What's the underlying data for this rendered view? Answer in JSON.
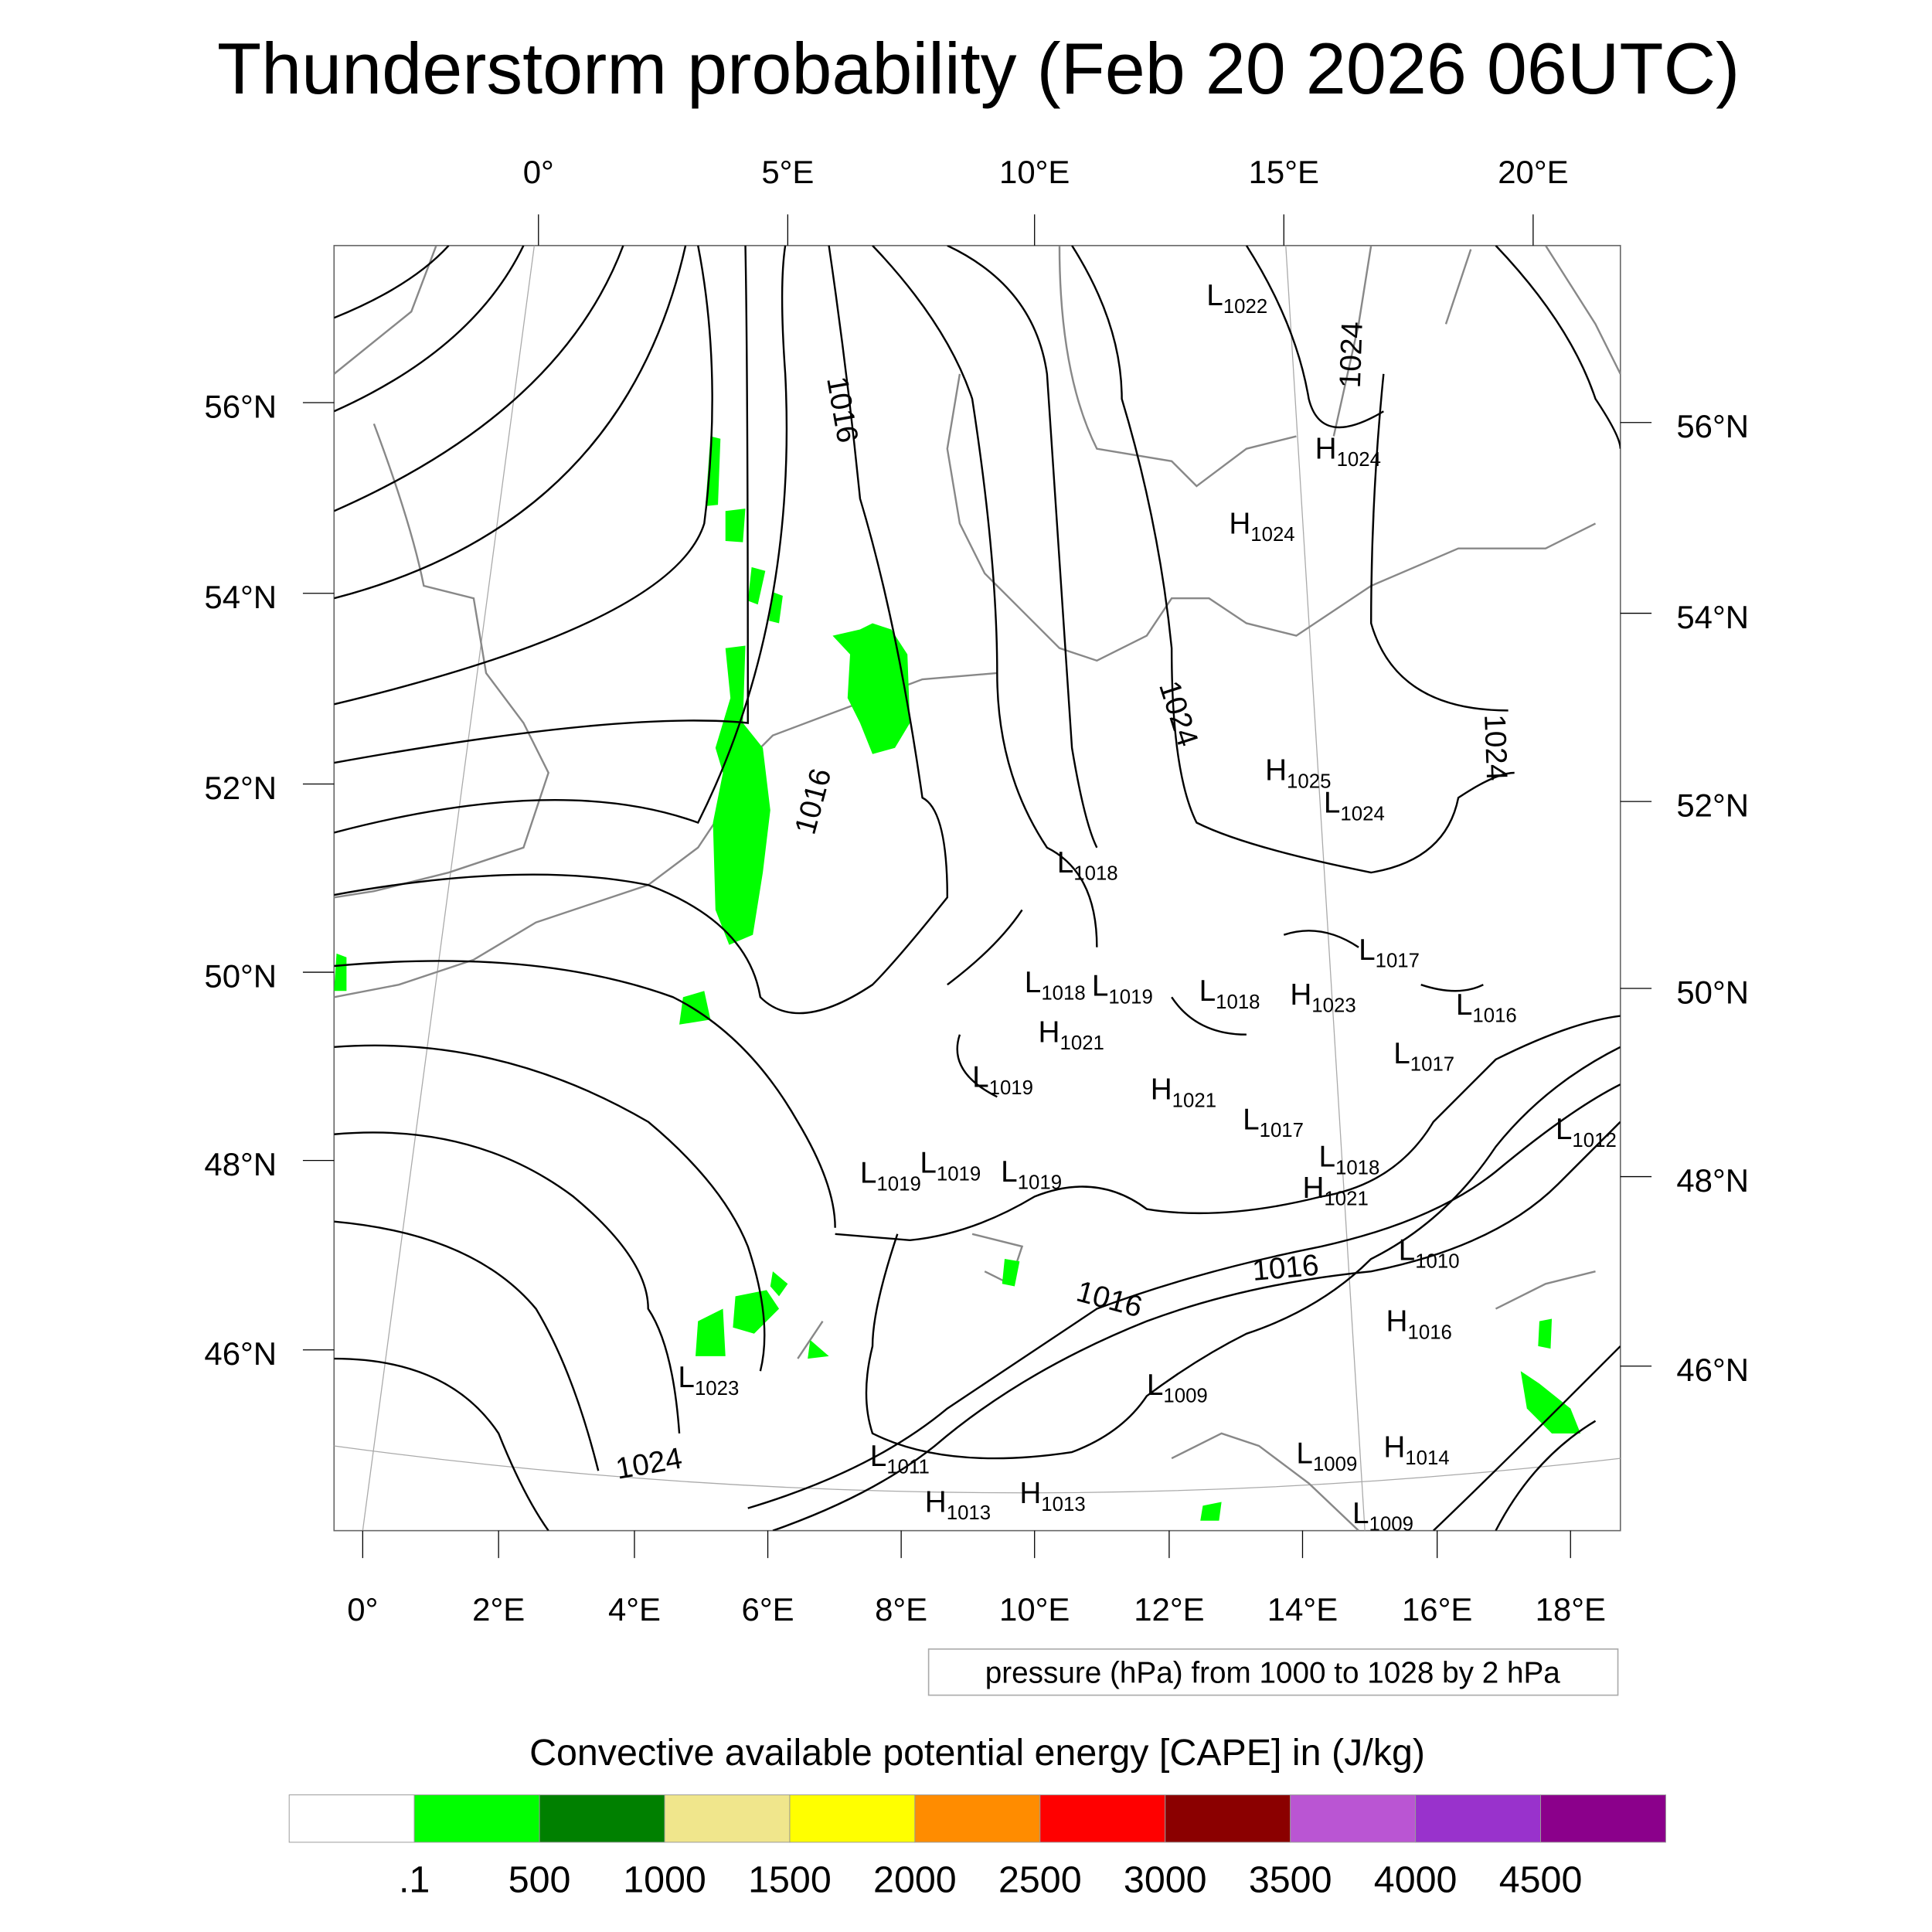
{
  "title": "Thunderstorm probability (Feb 20 2026 06UTC)",
  "map": {
    "top_lon_labels": [
      "0°",
      "5°E",
      "10°E",
      "15°E",
      "20°E"
    ],
    "bottom_lon_labels": [
      "0°",
      "2°E",
      "4°E",
      "6°E",
      "8°E",
      "10°E",
      "12°E",
      "14°E",
      "16°E",
      "18°E"
    ],
    "left_lat_labels": [
      "56°N",
      "54°N",
      "52°N",
      "50°N",
      "48°N",
      "46°N"
    ],
    "right_lat_labels": [
      "56°N",
      "54°N",
      "52°N",
      "50°N",
      "48°N",
      "46°N"
    ],
    "contour_labels": [
      "1016",
      "1016",
      "1024",
      "1024",
      "1024",
      "1016",
      "1016",
      "1024"
    ],
    "pressure_centers": [
      {
        "type": "L",
        "value": "1022"
      },
      {
        "type": "H",
        "value": "1024"
      },
      {
        "type": "H",
        "value": "1024"
      },
      {
        "type": "H",
        "value": "1025"
      },
      {
        "type": "L",
        "value": "1024"
      },
      {
        "type": "L",
        "value": "1018"
      },
      {
        "type": "L",
        "value": "1017"
      },
      {
        "type": "L",
        "value": "1018"
      },
      {
        "type": "L",
        "value": "1019"
      },
      {
        "type": "L",
        "value": "1018"
      },
      {
        "type": "H",
        "value": "1023"
      },
      {
        "type": "L",
        "value": "1016"
      },
      {
        "type": "H",
        "value": "1021"
      },
      {
        "type": "L",
        "value": "1017"
      },
      {
        "type": "L",
        "value": "1019"
      },
      {
        "type": "H",
        "value": "1021"
      },
      {
        "type": "L",
        "value": "1017"
      },
      {
        "type": "L",
        "value": "1012"
      },
      {
        "type": "L",
        "value": "1018"
      },
      {
        "type": "H",
        "value": "1021"
      },
      {
        "type": "L",
        "value": "1019"
      },
      {
        "type": "L",
        "value": "1019"
      },
      {
        "type": "L",
        "value": "1019"
      },
      {
        "type": "L",
        "value": "1010"
      },
      {
        "type": "H",
        "value": "1016"
      },
      {
        "type": "L",
        "value": "1023"
      },
      {
        "type": "L",
        "value": "1009"
      },
      {
        "type": "L",
        "value": "1011"
      },
      {
        "type": "L",
        "value": "1009"
      },
      {
        "type": "H",
        "value": "1014"
      },
      {
        "type": "H",
        "value": "1013"
      },
      {
        "type": "H",
        "value": "1013"
      },
      {
        "type": "L",
        "value": "1009"
      }
    ],
    "cape_color": "#00ff00"
  },
  "pressure_legend": "pressure (hPa) from 1000 to 1028 by 2 hPa",
  "colorbar": {
    "title": "Convective available potential energy [CAPE] in (J/kg)",
    "colors": [
      "#ffffff",
      "#00ff00",
      "#008000",
      "#f0e68c",
      "#ffff00",
      "#ff8c00",
      "#ff0000",
      "#8b0000",
      "#ba55d3",
      "#9932cc",
      "#8b008b"
    ],
    "labels": [
      ".1",
      "500",
      "1000",
      "1500",
      "2000",
      "2500",
      "3000",
      "3500",
      "4000",
      "4500"
    ]
  }
}
